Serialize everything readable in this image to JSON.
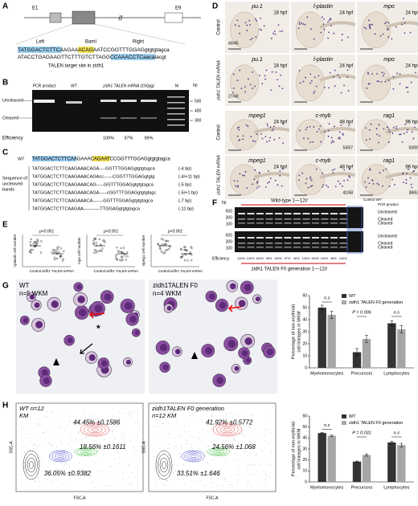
{
  "labels": [
    "A",
    "B",
    "C",
    "D",
    "E",
    "F",
    "G",
    "H"
  ],
  "A": {
    "exons": [
      "E1",
      "E9"
    ],
    "left": "Left",
    "site": "BamI",
    "right": "Right",
    "seq_top": "TATGGACTCTTCAAGAAACAGAATCCGGTTTGGAGgtgtgtagca",
    "seq_bottom": "ATACCTGAGAAGTTCTTTGTCTTAGGCCAAACCTCaacatacgt",
    "caption": "TALEN target site in zidh1"
  },
  "B": {
    "columns": [
      "PCR product",
      "WT",
      "zidh1 TALEN mRNA (150pg)",
      "M"
    ],
    "unit": "bp",
    "markers": [
      "500",
      "400",
      "300"
    ],
    "bands": [
      "Uncleaved",
      "Cleaved"
    ],
    "efficiency_label": "Efficiency",
    "efficiency": [
      "100%",
      "97%",
      "99%"
    ]
  },
  "C": {
    "wt_label": "WT",
    "wt_seq": "TATGGACTCTTCAAGAAACAGAATCCGGTTTGGAGgtgtgtagca",
    "group_label": [
      "Sequence of",
      "uncleaved",
      "bands"
    ],
    "sequences": [
      "TATGGACTCTTCAAGAAACAGA----GGTTTGGAGgtgtgtagca",
      "TATGGACTCTTCAAGAAACAGAcc------CGGTTTGGAGgtgtg",
      "TATGGACTCTTCAAGAAACAG-----GGTTTGGAGgtgtgtagca",
      "TATGGACTCTTCAAGAAACAGA-----cGGTTTGGAGgtgtgtagc",
      "TATGGACTCTTCAAGAAACA-------GGTTTGGAGgtgtgtagca",
      "TATGGACTCTTCAAGAA-----------TTGGAGgtgtgtagca"
    ],
    "changes": [
      "(-4 bp)",
      "(-4/+11 bp)",
      "(-5 bp)",
      "(-5/+1 bp)",
      "(-7 bp)",
      "(-11 bp)"
    ]
  },
  "D": {
    "rows": [
      "Control",
      "zidh1 TALEN mRNA"
    ],
    "top": [
      {
        "probe": "pu.1",
        "stage": "18 hpf"
      },
      {
        "probe": "l-plastin",
        "stage": "24 hpf"
      },
      {
        "probe": "mpo",
        "stage": "24 hpf"
      }
    ],
    "top_counts": [
      "40/45",
      "27/40"
    ],
    "bottom": [
      {
        "probe": "mpeg1",
        "stage": "24 hpf"
      },
      {
        "probe": "c-myb",
        "stage": "48 hpf"
      },
      {
        "probe": "rag1",
        "stage": "96 hpf"
      }
    ],
    "bottom_counts": [
      "53/57",
      "50/55",
      "41/58",
      "38/63"
    ]
  },
  "E": {
    "plots": [
      {
        "y_label": "l-plastin cell number",
        "p": "p<0.001"
      },
      {
        "y_label": "mpx cell number",
        "p": "p<0.001"
      },
      {
        "y_label": "mpeg1 cell number",
        "p": "p<0.001"
      }
    ],
    "groups": [
      "Control",
      "zidh1 TALEN mRNA"
    ]
  },
  "F": {
    "unit": "bp",
    "markers": [
      "500",
      "300",
      "100"
    ],
    "header": "Wild-type 1—12#",
    "control": "Control WT",
    "pcr": "PCR product",
    "bands": [
      "Uncleaved",
      "Cleaved",
      "Cleaved"
    ],
    "efficiency_label": "Efficiency",
    "efficiency": [
      "100%",
      "100%",
      "100%",
      "98%",
      "100%",
      "97%",
      "96%",
      "100%",
      "100%",
      "100%",
      "98%",
      "100%"
    ],
    "footer": "zidh1 TALEN F0 generation 1—12#"
  },
  "G": {
    "images": [
      [
        "WT",
        "n=5  WKM"
      ],
      [
        "zidh1TALEN F0",
        "n=4  WKM"
      ]
    ],
    "star": "*"
  },
  "H": {
    "images": [
      {
        "title": [
          "WT n=12",
          "KM"
        ],
        "gates": [
          "44.45% ±0.1586",
          "18.56% ±0.1611",
          "36.05% ±0.9382"
        ]
      },
      {
        "title": [
          "zidh1TALEN F0 generation",
          "n=12 KM"
        ],
        "gates": [
          "41.92% ±0.5772",
          "24.56% ±1.068",
          "33.51% ±1.646"
        ]
      }
    ],
    "y_axis": "SSC-A",
    "x_axis": "FSC-A"
  },
  "chart_data": [
    {
      "type": "bar",
      "y_label": [
        "Percentage of non-erythroid",
        "cell lineages in WKM"
      ],
      "categories": [
        "Myelomonocytes",
        "Precursors",
        "Lymphocytes"
      ],
      "series": [
        {
          "name": "WT",
          "color": "#333333",
          "values": [
            50,
            13,
            37
          ],
          "errors": [
            2,
            3,
            2
          ]
        },
        {
          "name": "zidh1 TALEN F0 generation",
          "color": "#a6a6a6",
          "values": [
            44,
            24,
            32
          ],
          "errors": [
            3,
            3,
            3
          ]
        }
      ],
      "annotations": [
        "n.s",
        "P = 0.006",
        "n.s"
      ],
      "ylim": [
        0,
        60
      ],
      "yticks": [
        0,
        10,
        20,
        30,
        40,
        50,
        60
      ],
      "legend": "top"
    },
    {
      "type": "bar",
      "y_label": [
        "Percentage of non-erythroid",
        "cell lineages in WKM"
      ],
      "categories": [
        "Myelomonocytes",
        "Precursors",
        "Lymphocytes"
      ],
      "series": [
        {
          "name": "WT",
          "color": "#333333",
          "values": [
            44.5,
            18.5,
            36
          ],
          "errors": [
            0.5,
            0.5,
            1
          ]
        },
        {
          "name": "zidh1 TALEN F0 generation",
          "color": "#a6a6a6",
          "values": [
            42,
            24.5,
            33.5
          ],
          "errors": [
            0.6,
            1,
            1.6
          ]
        }
      ],
      "annotations": [
        "n.s",
        "P = 0.031",
        "n.s"
      ],
      "ylim": [
        0,
        60
      ],
      "yticks": [
        0,
        10,
        20,
        30,
        40,
        50,
        60
      ],
      "legend": "top"
    }
  ]
}
